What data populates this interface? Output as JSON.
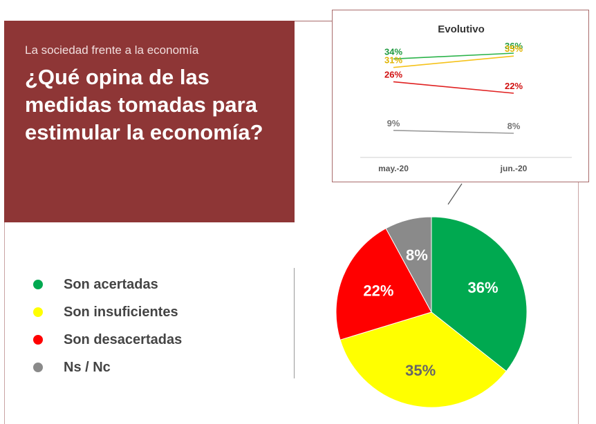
{
  "header": {
    "subtitle": "La sociedad frente a la economía",
    "title": "¿Qué opina de las medidas tomadas para estimular la economía?"
  },
  "colors": {
    "header_bg": "#8e3636",
    "acertadas": "#00a950",
    "insuficientes": "#ffff00",
    "desacertadas": "#ff0000",
    "nsnc": "#8a8a8a"
  },
  "chart_data": [
    {
      "type": "pie",
      "categories": [
        "Son acertadas",
        "Son insuficientes",
        "Son desacertadas",
        "Ns / Nc"
      ],
      "values": [
        36,
        35,
        22,
        8
      ],
      "labels": [
        "36%",
        "35%",
        "22%",
        "8%"
      ],
      "legend": "left"
    },
    {
      "type": "line",
      "title": "Evolutivo",
      "categories": [
        "may.-20",
        "jun.-20"
      ],
      "series": [
        {
          "values": [
            34,
            36
          ],
          "labels": [
            "34%",
            "36%"
          ]
        },
        {
          "values": [
            31,
            35
          ],
          "labels": [
            "31%",
            "35%"
          ]
        },
        {
          "values": [
            26,
            22
          ],
          "labels": [
            "26%",
            "22%"
          ]
        },
        {
          "values": [
            9,
            8
          ],
          "labels": [
            "9%",
            "8%"
          ]
        }
      ],
      "legend": "none"
    }
  ]
}
